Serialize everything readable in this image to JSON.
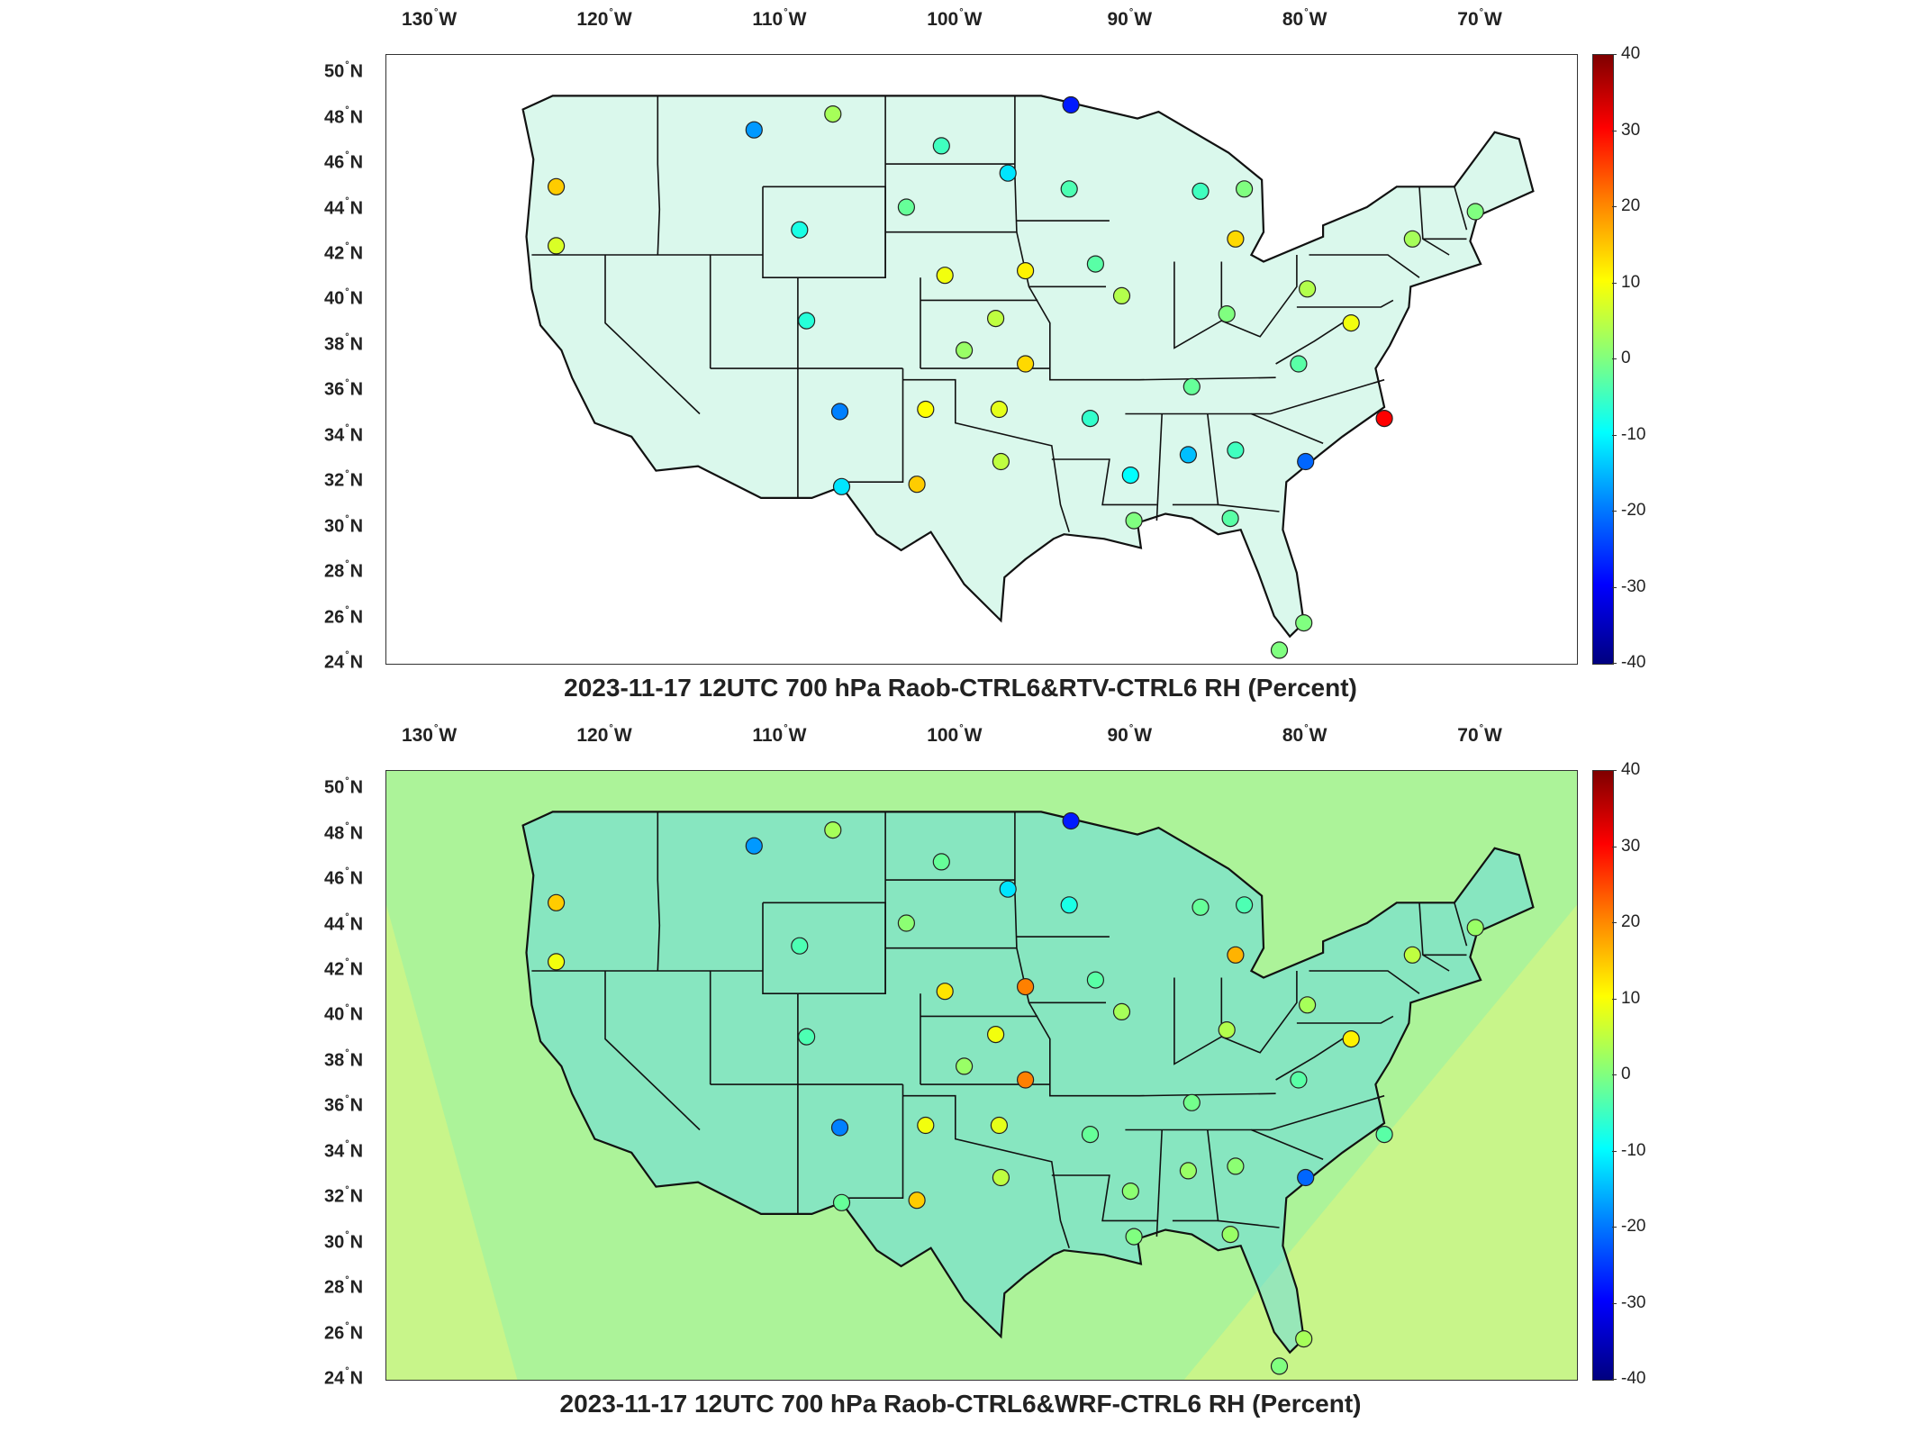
{
  "lon_labels": [
    {
      "deg": "130",
      "dir": "W",
      "lon": -130
    },
    {
      "deg": "120",
      "dir": "W",
      "lon": -120
    },
    {
      "deg": "110",
      "dir": "W",
      "lon": -110
    },
    {
      "deg": "100",
      "dir": "W",
      "lon": -100
    },
    {
      "deg": "90",
      "dir": "W",
      "lon": -90
    },
    {
      "deg": "80",
      "dir": "W",
      "lon": -80
    },
    {
      "deg": "70",
      "dir": "W",
      "lon": -70
    }
  ],
  "lat_labels": [
    {
      "deg": "50",
      "dir": "N",
      "lat": 50
    },
    {
      "deg": "48",
      "dir": "N",
      "lat": 48
    },
    {
      "deg": "46",
      "dir": "N",
      "lat": 46
    },
    {
      "deg": "44",
      "dir": "N",
      "lat": 44
    },
    {
      "deg": "42",
      "dir": "N",
      "lat": 42
    },
    {
      "deg": "40",
      "dir": "N",
      "lat": 40
    },
    {
      "deg": "38",
      "dir": "N",
      "lat": 38
    },
    {
      "deg": "36",
      "dir": "N",
      "lat": 36
    },
    {
      "deg": "34",
      "dir": "N",
      "lat": 34
    },
    {
      "deg": "32",
      "dir": "N",
      "lat": 32
    },
    {
      "deg": "30",
      "dir": "N",
      "lat": 30
    },
    {
      "deg": "28",
      "dir": "N",
      "lat": 28
    },
    {
      "deg": "26",
      "dir": "N",
      "lat": 26
    },
    {
      "deg": "24",
      "dir": "N",
      "lat": 24
    }
  ],
  "colorbar": {
    "ticks": [
      "40",
      "30",
      "20",
      "10",
      "0",
      "-10",
      "-20",
      "-30",
      "-40"
    ],
    "colors": [
      "#7f0000",
      "#ff0000",
      "#ff8000",
      "#ffff00",
      "#80ff80",
      "#00ffff",
      "#0080ff",
      "#0000ff",
      "#00007f"
    ]
  },
  "panels": [
    {
      "id": "top",
      "title": "2023-11-17 12UTC 700 hPa Raob-CTRL6&RTV-CTRL6 RH (Percent)",
      "stations": [
        {
          "lon": -107,
          "lat": 48.2,
          "value": 3
        },
        {
          "lon": -111.5,
          "lat": 47.5,
          "value": -18
        },
        {
          "lon": -122.8,
          "lat": 45,
          "value": 14
        },
        {
          "lon": -122.8,
          "lat": 42.4,
          "value": 7
        },
        {
          "lon": -108.9,
          "lat": 43.1,
          "value": -8
        },
        {
          "lon": -102.8,
          "lat": 44.1,
          "value": -2
        },
        {
          "lon": -100.8,
          "lat": 46.8,
          "value": -5
        },
        {
          "lon": -97,
          "lat": 45.6,
          "value": -12
        },
        {
          "lon": -93.4,
          "lat": 48.6,
          "value": -28
        },
        {
          "lon": -93.5,
          "lat": 44.9,
          "value": -4
        },
        {
          "lon": -100.6,
          "lat": 41.1,
          "value": 9
        },
        {
          "lon": -96,
          "lat": 41.3,
          "value": 11
        },
        {
          "lon": -97.7,
          "lat": 39.2,
          "value": 5
        },
        {
          "lon": -92,
          "lat": 41.6,
          "value": -3
        },
        {
          "lon": -90.5,
          "lat": 40.2,
          "value": 4
        },
        {
          "lon": -86,
          "lat": 44.8,
          "value": -5
        },
        {
          "lon": -83.5,
          "lat": 44.9,
          "value": 0
        },
        {
          "lon": -84,
          "lat": 42.7,
          "value": 13
        },
        {
          "lon": -79.9,
          "lat": 40.5,
          "value": 4
        },
        {
          "lon": -84.5,
          "lat": 39.4,
          "value": 0
        },
        {
          "lon": -80.4,
          "lat": 37.2,
          "value": -3
        },
        {
          "lon": -77.4,
          "lat": 39,
          "value": 9
        },
        {
          "lon": -73.9,
          "lat": 42.7,
          "value": 3
        },
        {
          "lon": -70.3,
          "lat": 43.9,
          "value": 0
        },
        {
          "lon": -75.5,
          "lat": 34.8,
          "value": 30
        },
        {
          "lon": -86.5,
          "lat": 36.2,
          "value": -2
        },
        {
          "lon": -80,
          "lat": 32.9,
          "value": -22
        },
        {
          "lon": -84,
          "lat": 33.4,
          "value": -5
        },
        {
          "lon": -86.7,
          "lat": 33.2,
          "value": -15
        },
        {
          "lon": -90,
          "lat": 32.3,
          "value": -10
        },
        {
          "lon": -92.3,
          "lat": 34.8,
          "value": -6
        },
        {
          "lon": -97.5,
          "lat": 35.2,
          "value": 8
        },
        {
          "lon": -101.7,
          "lat": 35.2,
          "value": 10
        },
        {
          "lon": -106.6,
          "lat": 35.1,
          "value": -20
        },
        {
          "lon": -97.4,
          "lat": 32.9,
          "value": 5
        },
        {
          "lon": -102.2,
          "lat": 31.9,
          "value": 14
        },
        {
          "lon": -106.5,
          "lat": 31.8,
          "value": -12
        },
        {
          "lon": -99.5,
          "lat": 37.8,
          "value": 2
        },
        {
          "lon": -96,
          "lat": 37.2,
          "value": 13
        },
        {
          "lon": -108.5,
          "lat": 39.1,
          "value": -7
        },
        {
          "lon": -89.8,
          "lat": 30.3,
          "value": 0
        },
        {
          "lon": -84.3,
          "lat": 30.4,
          "value": -3
        },
        {
          "lon": -81.5,
          "lat": 24.6,
          "value": 0
        },
        {
          "lon": -80.1,
          "lat": 25.8,
          "value": 0
        }
      ]
    },
    {
      "id": "bottom",
      "title": "2023-11-17 12UTC 700 hPa Raob-CTRL6&WRF-CTRL6 RH (Percent)",
      "stations": [
        {
          "lon": -107,
          "lat": 48.2,
          "value": 3
        },
        {
          "lon": -111.5,
          "lat": 47.5,
          "value": -18
        },
        {
          "lon": -122.8,
          "lat": 45,
          "value": 14
        },
        {
          "lon": -122.8,
          "lat": 42.4,
          "value": 9
        },
        {
          "lon": -108.9,
          "lat": 43.1,
          "value": -4
        },
        {
          "lon": -102.8,
          "lat": 44.1,
          "value": 1
        },
        {
          "lon": -100.8,
          "lat": 46.8,
          "value": -2
        },
        {
          "lon": -97,
          "lat": 45.6,
          "value": -12
        },
        {
          "lon": -93.4,
          "lat": 48.6,
          "value": -28
        },
        {
          "lon": -93.5,
          "lat": 44.9,
          "value": -8
        },
        {
          "lon": -100.6,
          "lat": 41.1,
          "value": 12
        },
        {
          "lon": -96,
          "lat": 41.3,
          "value": 20
        },
        {
          "lon": -97.7,
          "lat": 39.2,
          "value": 9
        },
        {
          "lon": -92,
          "lat": 41.6,
          "value": -3
        },
        {
          "lon": -90.5,
          "lat": 40.2,
          "value": 3
        },
        {
          "lon": -86,
          "lat": 44.8,
          "value": -2
        },
        {
          "lon": -83.5,
          "lat": 44.9,
          "value": -4
        },
        {
          "lon": -84,
          "lat": 42.7,
          "value": 16
        },
        {
          "lon": -79.9,
          "lat": 40.5,
          "value": 3
        },
        {
          "lon": -84.5,
          "lat": 39.4,
          "value": 4
        },
        {
          "lon": -80.4,
          "lat": 37.2,
          "value": -3
        },
        {
          "lon": -77.4,
          "lat": 39,
          "value": 11
        },
        {
          "lon": -73.9,
          "lat": 42.7,
          "value": 5
        },
        {
          "lon": -70.3,
          "lat": 43.9,
          "value": 2
        },
        {
          "lon": -75.5,
          "lat": 34.8,
          "value": -3
        },
        {
          "lon": -86.5,
          "lat": 36.2,
          "value": -1
        },
        {
          "lon": -80,
          "lat": 32.9,
          "value": -22
        },
        {
          "lon": -84,
          "lat": 33.4,
          "value": 1
        },
        {
          "lon": -86.7,
          "lat": 33.2,
          "value": 2
        },
        {
          "lon": -90,
          "lat": 32.3,
          "value": 1
        },
        {
          "lon": -92.3,
          "lat": 34.8,
          "value": -2
        },
        {
          "lon": -97.5,
          "lat": 35.2,
          "value": 8
        },
        {
          "lon": -101.7,
          "lat": 35.2,
          "value": 9
        },
        {
          "lon": -106.6,
          "lat": 35.1,
          "value": -20
        },
        {
          "lon": -97.4,
          "lat": 32.9,
          "value": 5
        },
        {
          "lon": -102.2,
          "lat": 31.9,
          "value": 14
        },
        {
          "lon": -106.5,
          "lat": 31.8,
          "value": -2
        },
        {
          "lon": -99.5,
          "lat": 37.8,
          "value": 2
        },
        {
          "lon": -96,
          "lat": 37.2,
          "value": 20
        },
        {
          "lon": -108.5,
          "lat": 39.1,
          "value": -4
        },
        {
          "lon": -89.8,
          "lat": 30.3,
          "value": 0
        },
        {
          "lon": -84.3,
          "lat": 30.4,
          "value": 2
        },
        {
          "lon": -81.5,
          "lat": 24.6,
          "value": 0
        },
        {
          "lon": -80.1,
          "lat": 25.8,
          "value": 3
        }
      ]
    }
  ]
}
